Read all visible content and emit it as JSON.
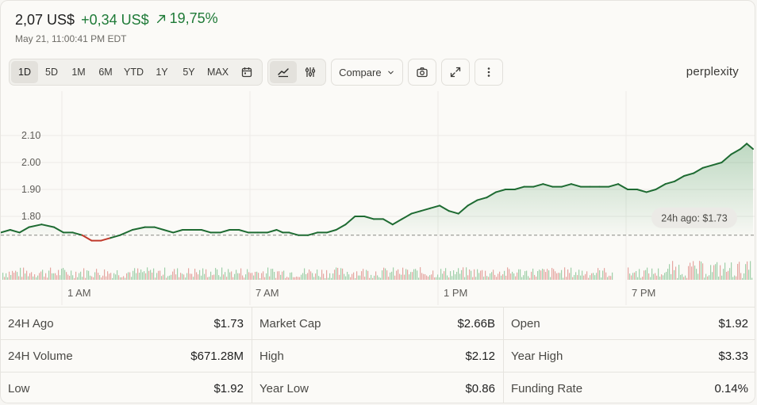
{
  "header": {
    "price": "2,07 US$",
    "change": "+0,34 US$",
    "change_pct": "19,75%",
    "timestamp": "May 21, 11:00:41 PM EDT"
  },
  "toolbar": {
    "ranges": [
      "1D",
      "5D",
      "1M",
      "6M",
      "YTD",
      "1Y",
      "5Y",
      "MAX"
    ],
    "active_range": "1D",
    "compare_label": "Compare"
  },
  "brand": "perplexity",
  "colors": {
    "up": "#1e6b32",
    "down": "#c0392b",
    "accent_text": "#1e7a37"
  },
  "chart_data": {
    "type": "line",
    "y_ticks": [
      "2.10",
      "2.00",
      "1.90",
      "1.80"
    ],
    "x_ticks": [
      "1 AM",
      "7 AM",
      "1 PM",
      "7 PM"
    ],
    "reference_label": "24h ago: $1.73",
    "reference_value": 1.73,
    "ylim": [
      1.66,
      2.17
    ],
    "grid": true,
    "series": [
      {
        "x": [
          0,
          0.3,
          0.6,
          0.9,
          1.3,
          1.7,
          2.0,
          2.3,
          2.6,
          2.9,
          3.2,
          3.5,
          3.8,
          4.2,
          4.6,
          4.9,
          5.2,
          5.5,
          5.8,
          6.1,
          6.4,
          6.7,
          7.0,
          7.3,
          7.6,
          7.9,
          8.2,
          8.5,
          8.8,
          9.0,
          9.2,
          9.5,
          9.8,
          10.1,
          10.4,
          10.7,
          11.0,
          11.3,
          11.6,
          11.9,
          12.2,
          12.5,
          12.8,
          13.1,
          13.4,
          13.7,
          14.0,
          14.3,
          14.6,
          14.9,
          15.2,
          15.5,
          15.8,
          16.1,
          16.4,
          16.7,
          17.0,
          17.3,
          17.6,
          17.9,
          18.2,
          18.5,
          18.8,
          19.1,
          19.4,
          19.7,
          20.0,
          20.3,
          20.6,
          20.9,
          21.2,
          21.5,
          21.8,
          22.1,
          22.4,
          22.7,
          23.0,
          23.3,
          23.6,
          23.8,
          24.0
        ],
        "values": [
          1.74,
          1.75,
          1.74,
          1.76,
          1.77,
          1.76,
          1.74,
          1.74,
          1.73,
          1.71,
          1.71,
          1.72,
          1.73,
          1.75,
          1.76,
          1.76,
          1.75,
          1.74,
          1.75,
          1.75,
          1.75,
          1.74,
          1.74,
          1.75,
          1.75,
          1.74,
          1.74,
          1.74,
          1.75,
          1.74,
          1.74,
          1.73,
          1.73,
          1.74,
          1.74,
          1.75,
          1.77,
          1.8,
          1.8,
          1.79,
          1.79,
          1.77,
          1.79,
          1.81,
          1.82,
          1.83,
          1.84,
          1.82,
          1.81,
          1.84,
          1.86,
          1.87,
          1.89,
          1.9,
          1.9,
          1.91,
          1.91,
          1.92,
          1.91,
          1.91,
          1.92,
          1.91,
          1.91,
          1.91,
          1.91,
          1.92,
          1.9,
          1.9,
          1.89,
          1.9,
          1.92,
          1.93,
          1.95,
          1.96,
          1.98,
          1.99,
          2.0,
          2.03,
          2.05,
          2.07,
          2.05
        ]
      }
    ]
  },
  "stats": [
    {
      "label": "24H Ago",
      "value": "$1.73"
    },
    {
      "label": "Market Cap",
      "value": "$2.66B"
    },
    {
      "label": "Open",
      "value": "$1.92"
    },
    {
      "label": "24H Volume",
      "value": "$671.28M"
    },
    {
      "label": "High",
      "value": "$2.12"
    },
    {
      "label": "Year High",
      "value": "$3.33"
    },
    {
      "label": "Low",
      "value": "$1.92"
    },
    {
      "label": "Year Low",
      "value": "$0.86"
    },
    {
      "label": "Funding Rate",
      "value": "0.14%"
    }
  ]
}
